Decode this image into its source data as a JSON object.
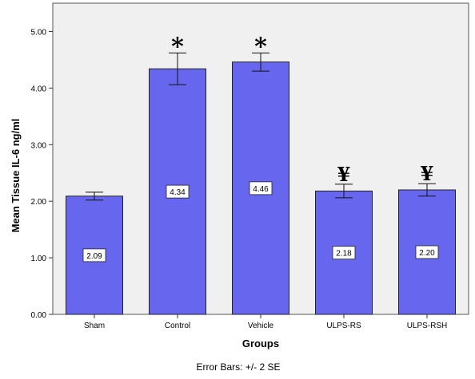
{
  "chart_data": {
    "type": "bar",
    "xlabel": "Groups",
    "ylabel": "Mean Tissue IL-6 ng/ml",
    "footnote": "Error Bars: +/- 2 SE",
    "categories": [
      "Sham",
      "Control",
      "Vehicle",
      "ULPS-RS",
      "ULPS-RSH"
    ],
    "values": [
      2.09,
      4.34,
      4.46,
      2.18,
      2.2
    ],
    "value_labels": [
      "2.09",
      "4.34",
      "4.46",
      "2.18",
      "2.20"
    ],
    "error_low": [
      2.02,
      4.06,
      4.3,
      2.06,
      2.09
    ],
    "error_high": [
      2.16,
      4.62,
      4.62,
      2.3,
      2.31
    ],
    "significance_markers": [
      "",
      "*",
      "*",
      "¥",
      "¥"
    ],
    "ylim": [
      0,
      5.5
    ],
    "yticks": [
      0,
      1,
      2,
      3,
      4,
      5
    ],
    "ytick_labels": [
      "0.00",
      "1.00",
      "2.00",
      "3.00",
      "4.00",
      "5.00"
    ],
    "grid": false,
    "colors": {
      "bar": "#6666ee",
      "plot_background": "#f0f0f0"
    }
  }
}
